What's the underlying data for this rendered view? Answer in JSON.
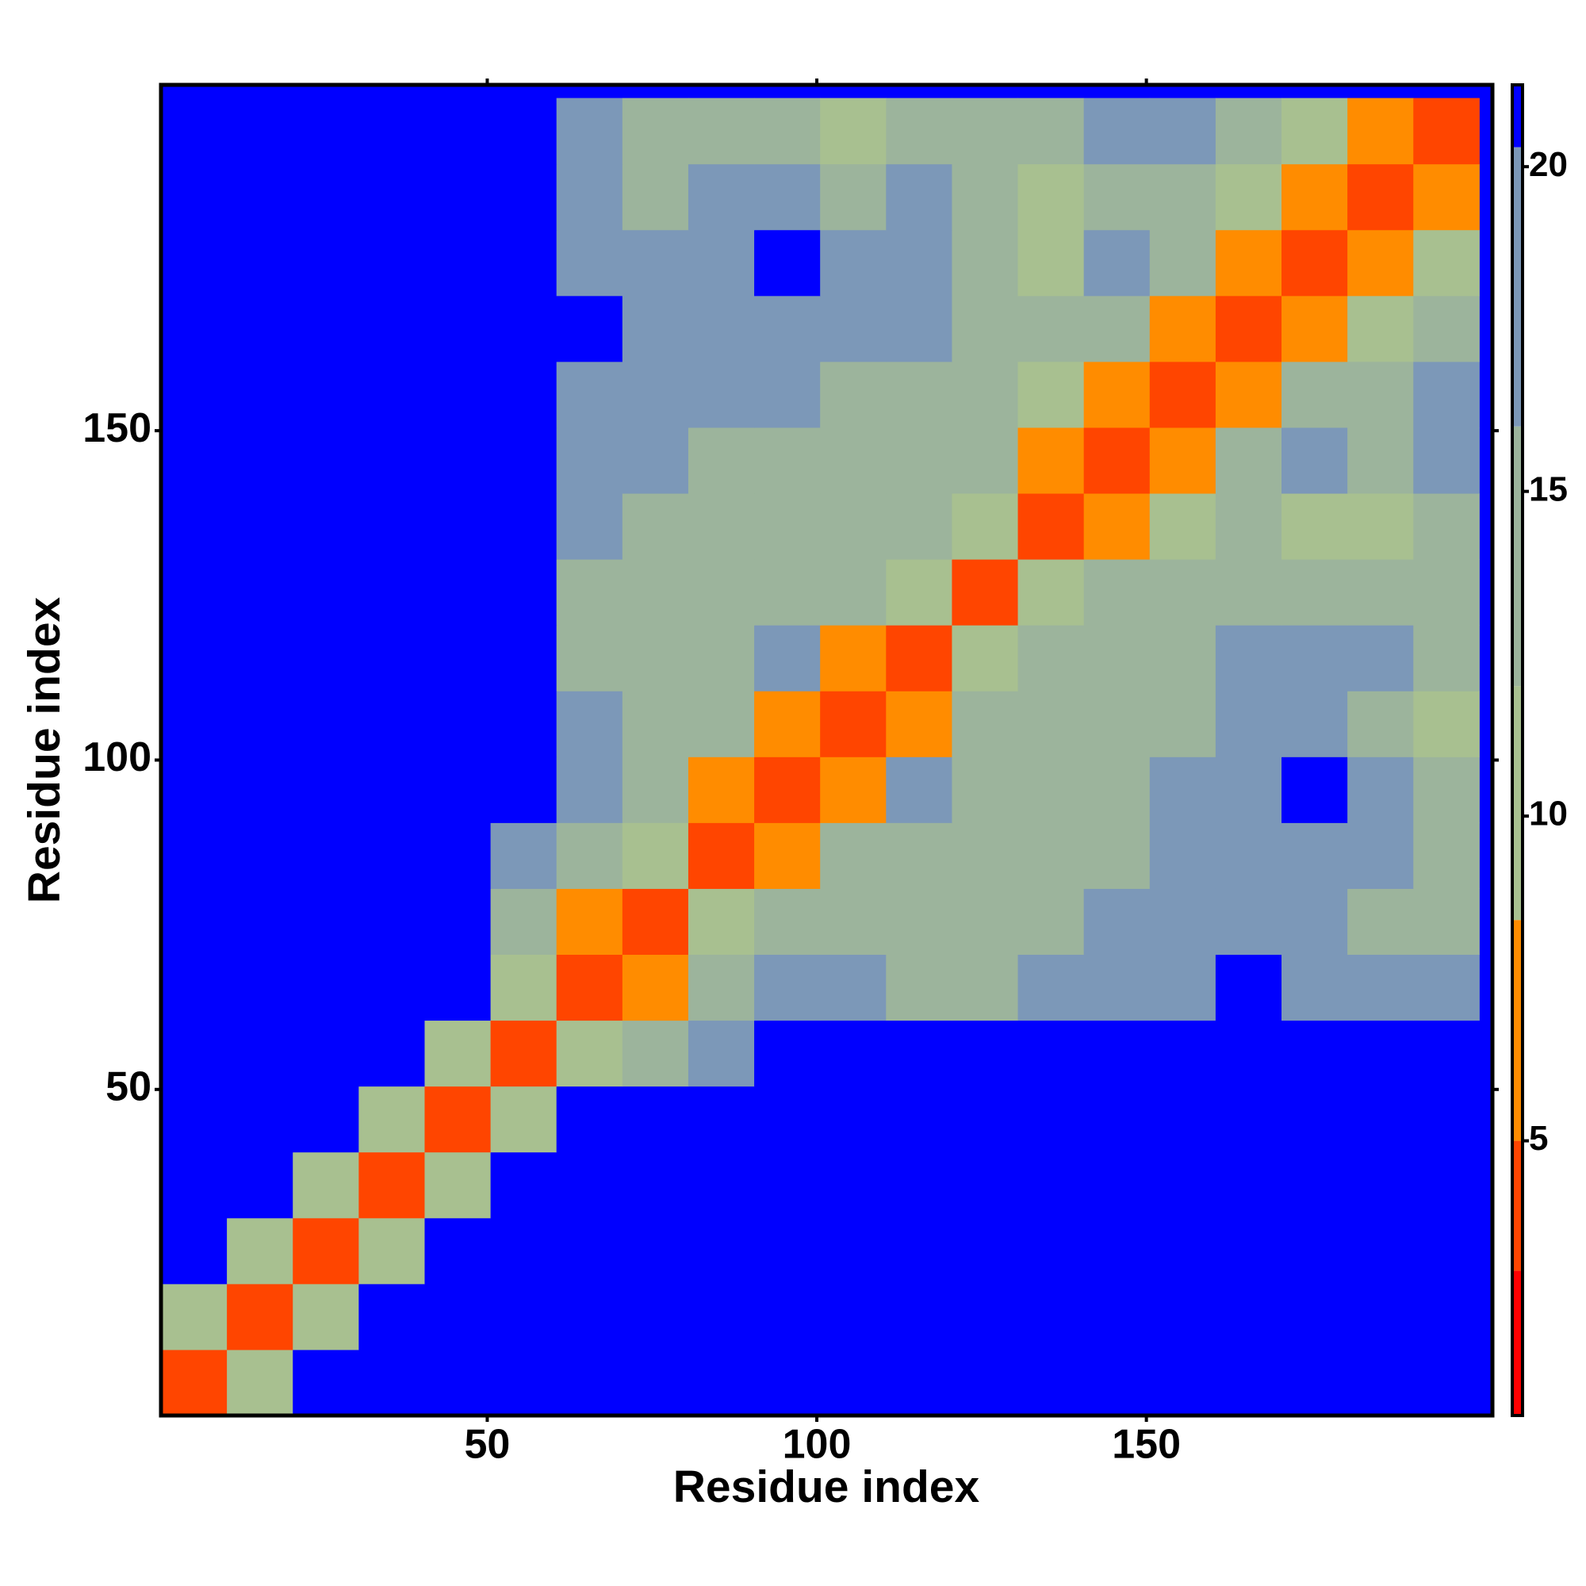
{
  "chart_data": {
    "type": "heatmap",
    "xlabel": "Residue index",
    "ylabel": "Residue index",
    "xlim": [
      0.5,
      202.5
    ],
    "ylim": [
      0.5,
      202.5
    ],
    "xticks": [
      50,
      100,
      150
    ],
    "yticks": [
      50,
      100,
      150
    ],
    "bins": [
      0.5,
      10.5,
      20.5,
      30.5,
      40.5,
      50.5,
      60.5,
      70.5,
      80.5,
      90.5,
      100.5,
      110.5,
      120.5,
      130.5,
      140.5,
      150.5,
      160.5,
      170.5,
      180.5,
      190.5,
      200.5
    ],
    "background": "#0000ff",
    "zlim": [
      0.77,
      21.26
    ],
    "zticks": [
      5,
      10,
      15,
      20
    ],
    "colorscale": [
      [
        0.77,
        "#ff0000"
      ],
      [
        3,
        "#ff4500"
      ],
      [
        5,
        "#ff8c00"
      ],
      [
        8.4,
        "#a8c090"
      ],
      [
        12,
        "#9cb49c"
      ],
      [
        16,
        "#7c98b8"
      ],
      [
        20.3,
        "#0000ff"
      ]
    ],
    "z": [
      [
        3,
        9,
        21,
        21,
        21,
        21,
        21,
        21,
        21,
        21,
        21,
        21,
        21,
        21,
        21,
        21,
        21,
        21,
        21,
        21
      ],
      [
        9,
        3,
        10,
        21,
        21,
        21,
        21,
        21,
        21,
        21,
        21,
        21,
        21,
        21,
        21,
        21,
        21,
        21,
        21,
        21
      ],
      [
        21,
        10,
        3,
        10,
        21,
        21,
        21,
        21,
        21,
        21,
        21,
        21,
        21,
        21,
        21,
        21,
        21,
        21,
        21,
        21
      ],
      [
        21,
        21,
        10,
        3,
        10,
        21,
        21,
        21,
        21,
        21,
        21,
        21,
        21,
        21,
        21,
        21,
        21,
        21,
        21,
        21
      ],
      [
        21,
        21,
        21,
        10,
        3,
        9,
        21,
        21,
        21,
        21,
        21,
        21,
        21,
        21,
        21,
        21,
        21,
        21,
        21,
        21
      ],
      [
        21,
        21,
        21,
        21,
        9,
        3,
        9,
        14,
        19,
        21,
        21,
        21,
        21,
        21,
        21,
        21,
        21,
        21,
        21,
        21
      ],
      [
        21,
        21,
        21,
        21,
        21,
        9,
        3,
        8,
        13,
        17,
        16,
        15,
        15,
        17,
        19,
        19,
        21,
        19,
        17,
        16
      ],
      [
        21,
        21,
        21,
        21,
        21,
        14,
        8,
        3,
        9,
        12,
        13,
        13,
        13,
        14,
        16,
        18,
        19,
        18,
        12,
        13
      ],
      [
        21,
        21,
        21,
        21,
        21,
        19,
        13,
        9,
        3,
        8,
        12,
        15,
        14,
        15,
        15,
        17,
        19,
        19,
        17,
        12
      ],
      [
        21,
        21,
        21,
        21,
        21,
        21,
        17,
        12,
        8,
        3,
        8,
        16,
        12,
        13,
        14,
        16,
        18,
        21,
        18,
        13
      ],
      [
        21,
        21,
        21,
        21,
        21,
        21,
        16,
        13,
        12,
        8,
        3,
        8,
        14,
        14,
        12,
        15,
        16,
        17,
        15,
        11
      ],
      [
        21,
        21,
        21,
        21,
        21,
        21,
        15,
        13,
        15,
        16,
        8,
        3,
        9,
        15,
        15,
        14,
        17,
        16,
        17,
        14
      ],
      [
        21,
        21,
        21,
        21,
        21,
        21,
        15,
        13,
        14,
        12,
        14,
        9,
        3,
        11,
        13,
        13,
        14,
        15,
        14,
        14
      ],
      [
        21,
        21,
        21,
        21,
        21,
        21,
        17,
        14,
        15,
        13,
        14,
        15,
        11,
        3,
        8,
        10,
        13,
        11,
        10,
        12
      ],
      [
        21,
        21,
        21,
        21,
        21,
        21,
        19,
        16,
        15,
        14,
        12,
        15,
        13,
        8,
        3,
        7,
        12,
        17,
        13,
        17
      ],
      [
        21,
        21,
        21,
        21,
        21,
        21,
        19,
        18,
        17,
        16,
        15,
        14,
        13,
        10,
        7,
        3,
        8,
        15,
        12,
        16
      ],
      [
        21,
        21,
        21,
        21,
        21,
        21,
        21,
        19,
        19,
        18,
        16,
        17,
        14,
        13,
        12,
        8,
        3,
        7,
        11,
        12
      ],
      [
        21,
        21,
        21,
        21,
        21,
        21,
        19,
        18,
        19,
        21,
        17,
        16,
        15,
        11,
        17,
        15,
        7,
        3,
        7,
        10
      ],
      [
        21,
        21,
        21,
        21,
        21,
        21,
        17,
        12,
        17,
        18,
        15,
        17,
        14,
        10,
        13,
        12,
        11,
        7,
        3,
        8
      ],
      [
        21,
        21,
        21,
        21,
        21,
        21,
        16,
        13,
        12,
        13,
        11,
        14,
        14,
        12,
        17,
        16,
        12,
        10,
        8,
        3
      ]
    ]
  }
}
